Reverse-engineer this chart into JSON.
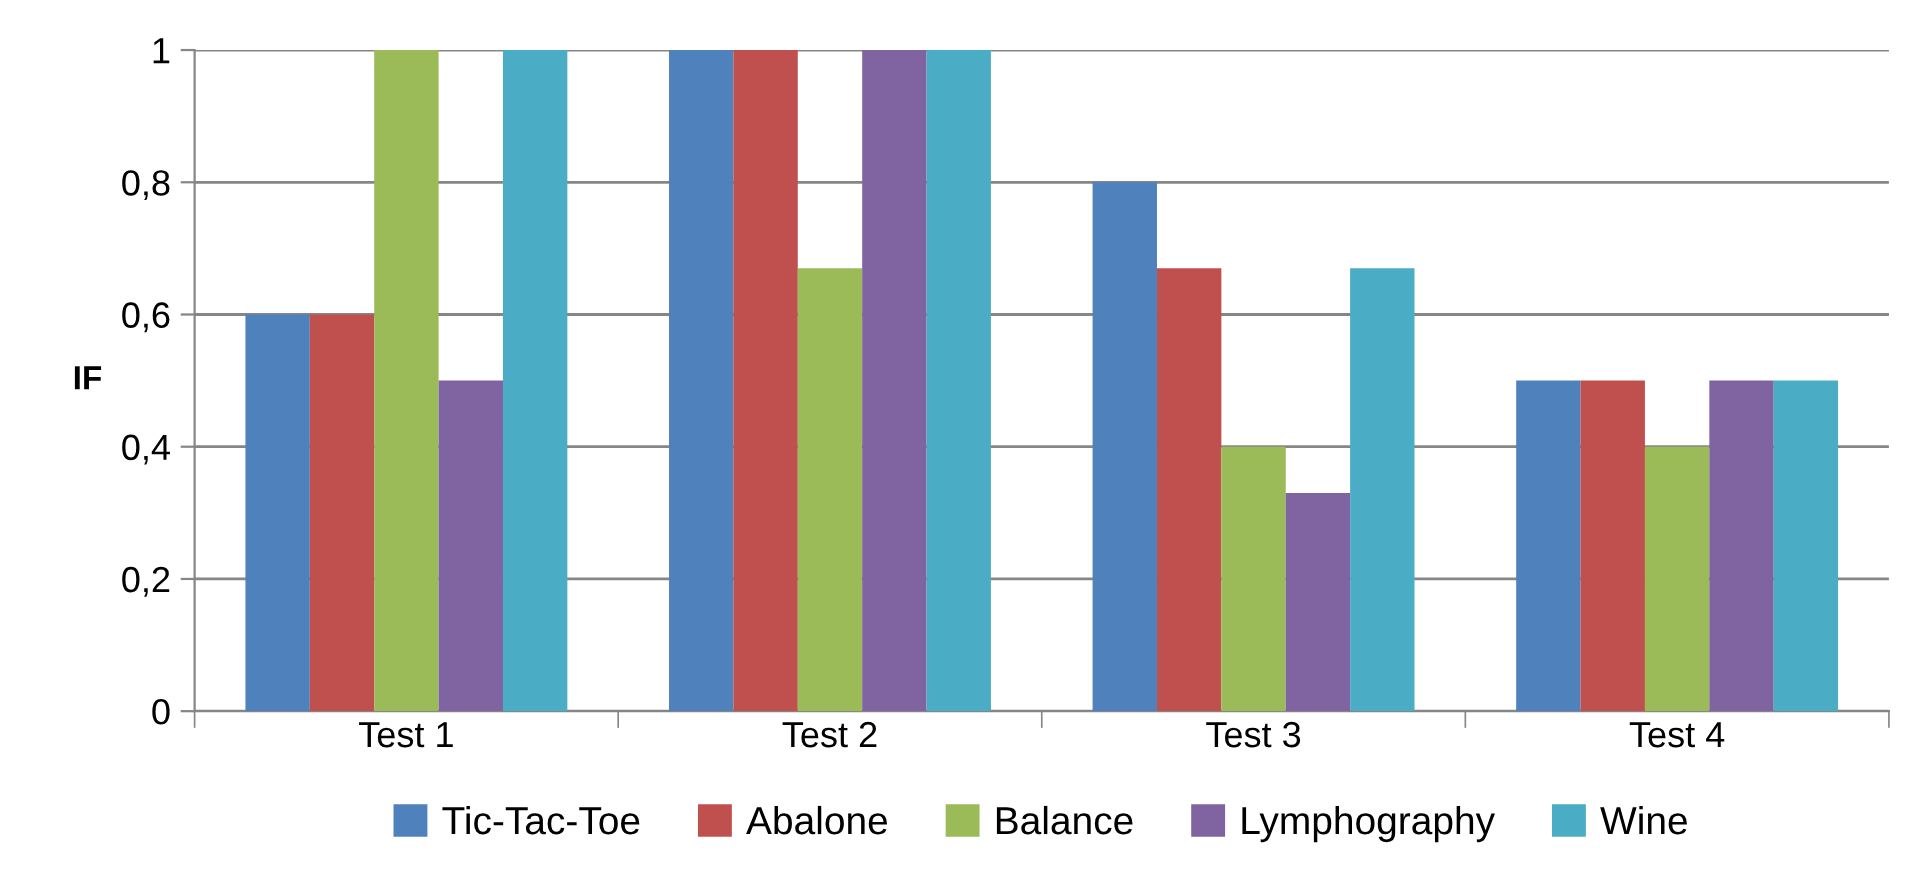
{
  "chart_data": {
    "type": "bar",
    "ylabel": "IF",
    "categories": [
      "Test 1",
      "Test 2",
      "Test 3",
      "Test 4"
    ],
    "series": [
      {
        "name": "Tic-Tac-Toe",
        "color": "#4f81bd",
        "values": [
          0.6,
          1,
          0.8,
          0.5
        ]
      },
      {
        "name": "Abalone",
        "color": "#c0504d",
        "values": [
          0.6,
          1,
          0.67,
          0.5
        ]
      },
      {
        "name": "Balance",
        "color": "#9bbb59",
        "values": [
          1,
          0.67,
          0.4,
          0.4
        ]
      },
      {
        "name": "Lymphography",
        "color": "#8064a2",
        "values": [
          0.5,
          1,
          0.33,
          0.5
        ]
      },
      {
        "name": "Wine",
        "color": "#4bacc6",
        "values": [
          1,
          1,
          0.67,
          0.5
        ]
      }
    ],
    "ylim": [
      0,
      1
    ],
    "yticks": [
      {
        "value": 0,
        "label": "0"
      },
      {
        "value": 0.2,
        "label": "0,2"
      },
      {
        "value": 0.4,
        "label": "0,4"
      },
      {
        "value": 0.6,
        "label": "0,6"
      },
      {
        "value": 0.8,
        "label": "0,8"
      },
      {
        "value": 1,
        "label": "1"
      }
    ],
    "grid": "y",
    "legend": "bottom"
  }
}
